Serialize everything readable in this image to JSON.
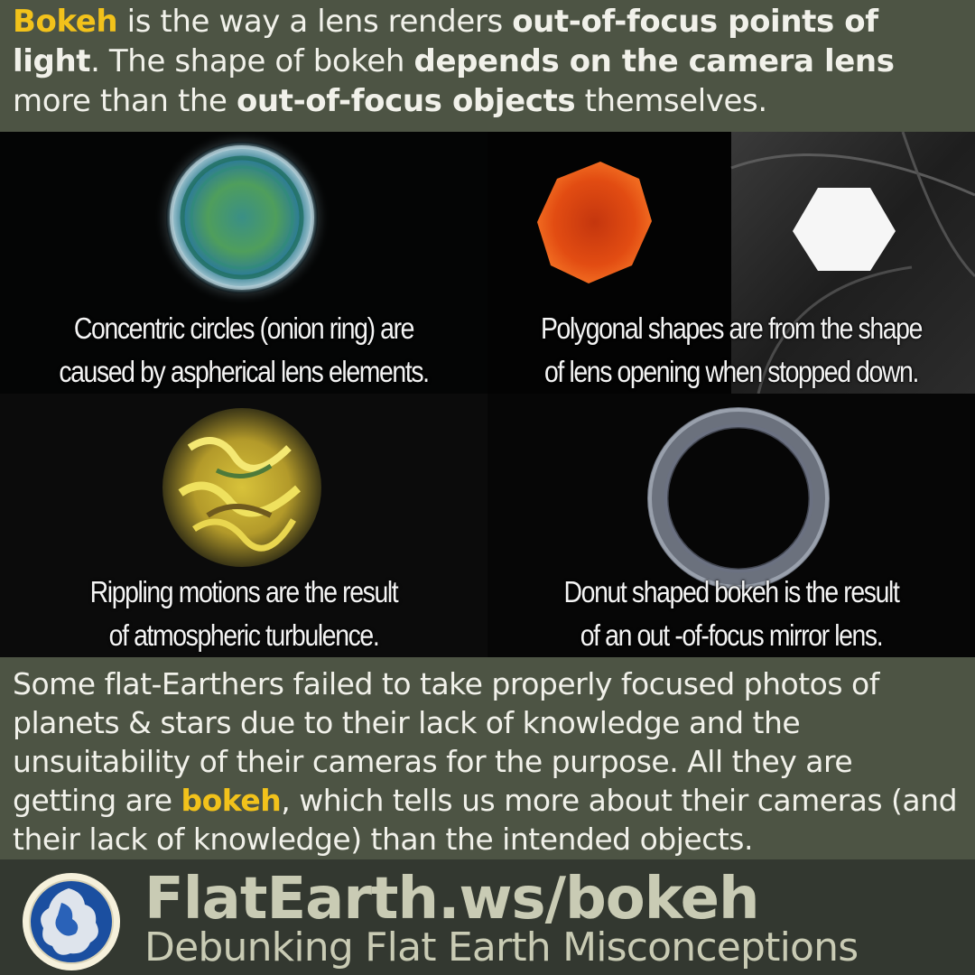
{
  "intro": {
    "part1": "Bokeh",
    "part2": " is the way a lens renders ",
    "part3": "out-of-focus points of light",
    "part4": ". The shape of bokeh ",
    "part5": "depends on the camera lens",
    "part6": " more than the ",
    "part7": "out-of-focus objects",
    "part8": " themselves."
  },
  "panels": [
    {
      "caption_line1": "Concentric circles (onion ring) are",
      "caption_line2": "caused by aspherical lens elements."
    },
    {
      "caption_line1": "Polygonal shapes are from the shape",
      "caption_line2": "of lens opening when stopped down."
    },
    {
      "caption_line1": "Rippling motions are the result",
      "caption_line2": "of atmospheric turbulence."
    },
    {
      "caption_line1": "Donut shaped bokeh is the result",
      "caption_line2": "of an out -of-focus mirror lens."
    }
  ],
  "outro": {
    "part1": "Some flat-Earthers failed to take properly focused photos of planets & stars due to their lack of knowledge and the unsuitability of their cameras for the purpose. All they are getting are ",
    "part2": "bokeh",
    "part3": ", which tells us more about their cameras (and their lack of knowledge) than the intended objects."
  },
  "footer": {
    "site": "FlatEarth.ws/bokeh",
    "tagline": "Debunking Flat Earth Misconceptions"
  },
  "colors": {
    "accent": "#f2c21b",
    "band_background": "#4d5444",
    "footer_background": "#333830",
    "footer_text": "#c9cbb4"
  }
}
